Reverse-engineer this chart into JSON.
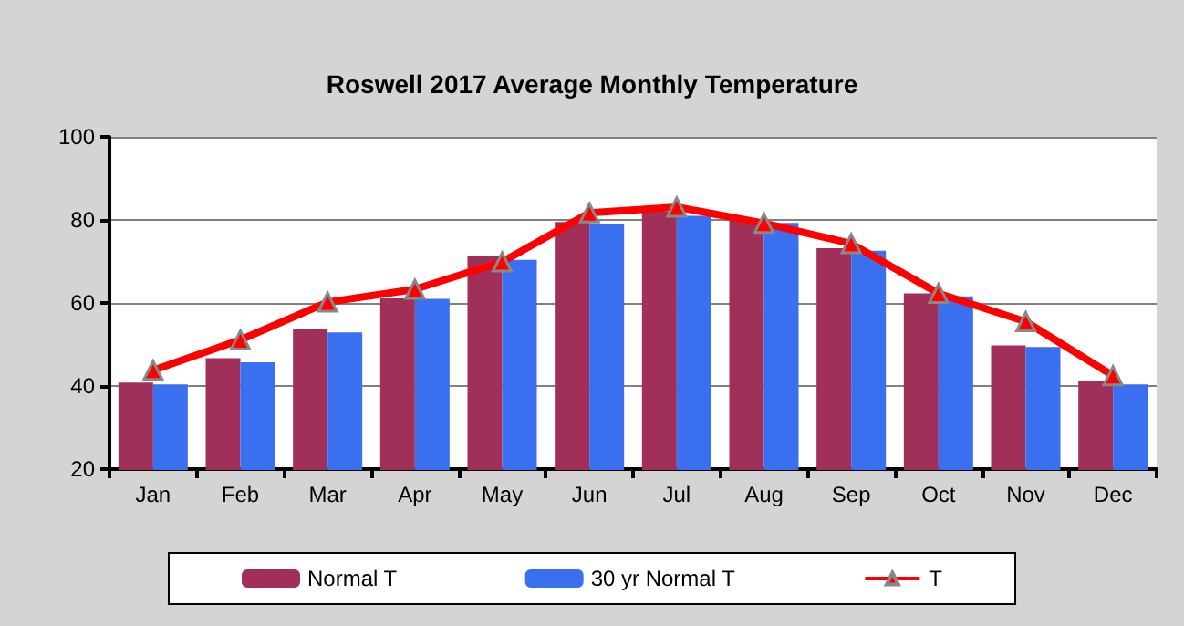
{
  "chart_data": {
    "type": "bar",
    "title": "Roswell 2017 Average Monthly Temperature",
    "categories": [
      "Jan",
      "Feb",
      "Mar",
      "Apr",
      "May",
      "Jun",
      "Jul",
      "Aug",
      "Sep",
      "Oct",
      "Nov",
      "Dec"
    ],
    "series": [
      {
        "name": "Normal T",
        "color": "#a0305a",
        "values": [
          40.8,
          46.7,
          53.8,
          61.1,
          71.2,
          79.5,
          82,
          79.9,
          73.2,
          62.3,
          49.8,
          41.3
        ]
      },
      {
        "name": "30 yr Normal T",
        "color": "#3a70f0",
        "values": [
          40.4,
          45.7,
          52.9,
          61,
          70.4,
          78.9,
          81,
          79.3,
          72.6,
          61.6,
          49.4,
          40.4
        ]
      },
      {
        "name": "T",
        "type": "line",
        "color": "#ff0000",
        "marker": "triangle",
        "values": [
          43.8,
          51.1,
          60.2,
          63.3,
          69.9,
          81.7,
          83.1,
          79.2,
          74.3,
          62.3,
          55.5,
          42.5
        ]
      }
    ],
    "ylim": [
      20,
      100
    ],
    "yticks": [
      20,
      40,
      60,
      80,
      100
    ],
    "grid": "y",
    "legend": "bottom"
  }
}
